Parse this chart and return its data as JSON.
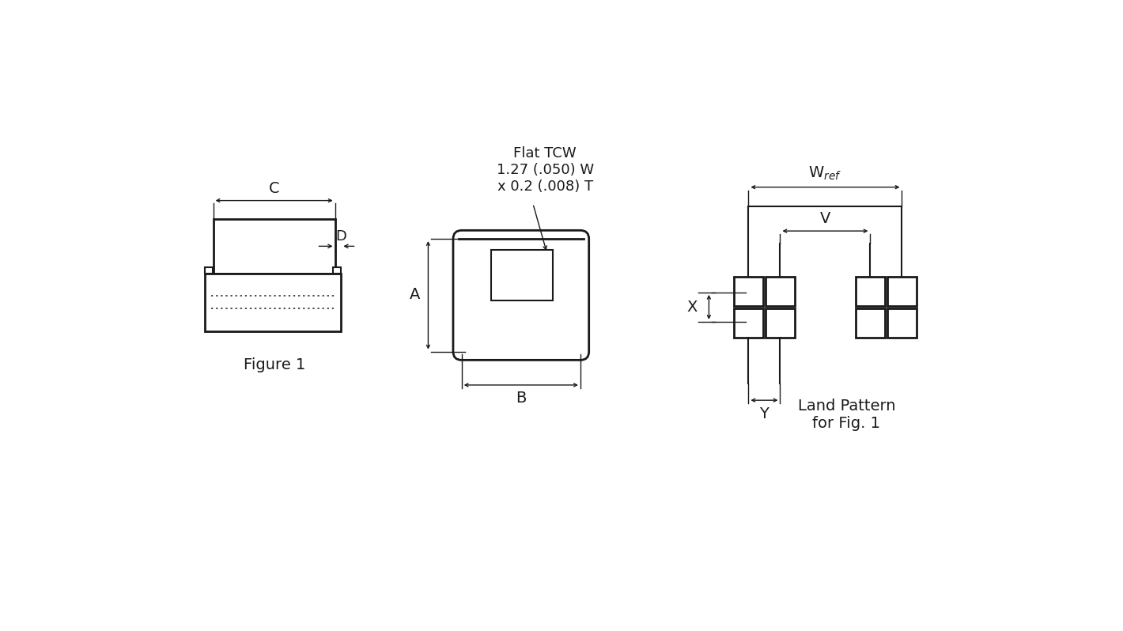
{
  "bg_color": "#ffffff",
  "line_color": "#1a1a1a",
  "text_color": "#1a1a1a",
  "fig1_label": "Figure 1",
  "land_pattern_label": "Land Pattern\nfor Fig. 1",
  "annotation_text": "Flat TCW\n1.27 (.050) W\nx 0.2 (.008) T"
}
